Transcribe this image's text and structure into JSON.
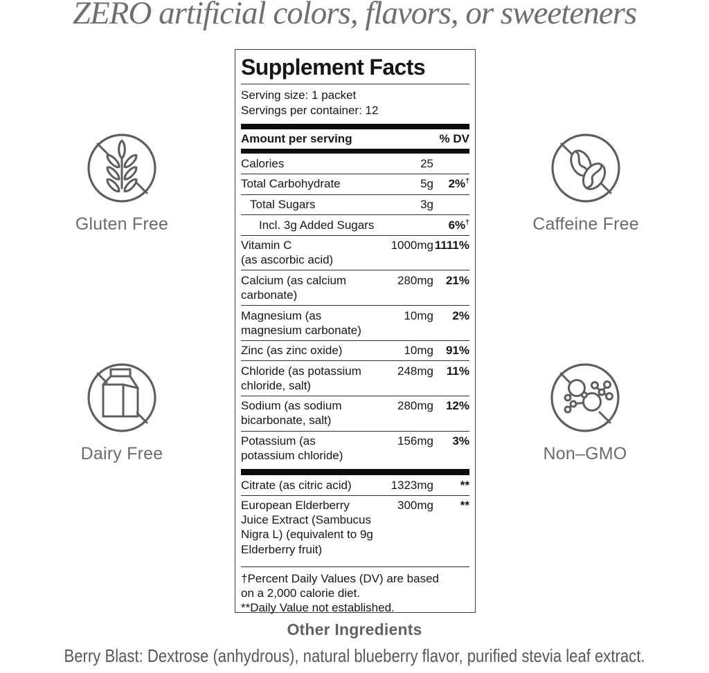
{
  "headline": "ZERO artificial colors, flavors, or sweeteners",
  "badges": [
    {
      "label": "Gluten Free",
      "icon": "wheat-icon"
    },
    {
      "label": "Caffeine Free",
      "icon": "coffee-beans-icon"
    },
    {
      "label": "Dairy Free",
      "icon": "milk-carton-icon"
    },
    {
      "label": "Non–GMO",
      "icon": "molecule-icon"
    }
  ],
  "supplement_facts": {
    "title": "Supplement Facts",
    "serving_size": "Serving size: 1 packet",
    "servings_per_container": "Servings per container: 12",
    "header": {
      "amount_label": "Amount per serving",
      "dv_label": "% DV"
    },
    "rows": [
      {
        "name": "Calories",
        "amount": "25",
        "dv": "",
        "indent": 0
      },
      {
        "name": "Total Carbohydrate",
        "amount": "5g",
        "dv": "2%",
        "dv_sup": "†",
        "indent": 0
      },
      {
        "name": "Total Sugars",
        "amount": "3g",
        "dv": "",
        "indent": 1
      },
      {
        "name": "Incl. 3g Added Sugars",
        "amount": "",
        "dv": "6%",
        "dv_sup": "†",
        "indent": 2
      },
      {
        "name": "Vitamin C\n(as ascorbic acid)",
        "amount": "1000mg",
        "dv": "1111%",
        "indent": 0
      },
      {
        "name": "Calcium (as calcium\ncarbonate)",
        "amount": "280mg",
        "dv": "21%",
        "indent": 0
      },
      {
        "name": "Magnesium (as\nmagnesium carbonate)",
        "amount": "10mg",
        "dv": "2%",
        "indent": 0
      },
      {
        "name": "Zinc (as zinc oxide)",
        "amount": "10mg",
        "dv": "91%",
        "indent": 0
      },
      {
        "name": "Chloride (as potassium\nchloride, salt)",
        "amount": "248mg",
        "dv": "11%",
        "indent": 0
      },
      {
        "name": "Sodium (as sodium\nbicarbonate, salt)",
        "amount": "280mg",
        "dv": "12%",
        "indent": 0
      },
      {
        "name": "Potassium (as\npotassium chloride)",
        "amount": "156mg",
        "dv": "3%",
        "indent": 0
      }
    ],
    "secondary_rows": [
      {
        "name": "Citrate (as citric acid)",
        "amount": "1323mg",
        "dv": "**",
        "indent": 0
      },
      {
        "name": "European Elderberry\nJuice Extract (Sambucus\nNigra L) (equivalent to 9g\nElderberry fruit)",
        "amount": "300mg",
        "dv": "**",
        "indent": 0
      }
    ],
    "footnotes": [
      "†Percent Daily Values (DV) are based\non a 2,000 calorie diet.",
      "**Daily Value not established."
    ]
  },
  "other_ingredients": {
    "title": "Other Ingredients",
    "text": "Berry Blast: Dextrose (anhydrous), natural blueberry flavor, purified stevia leaf extract."
  },
  "colors": {
    "ink": "#161616",
    "gray": "#6b6b6b",
    "stroke": "#5e5e5e",
    "rule": "#2f2f2f"
  }
}
